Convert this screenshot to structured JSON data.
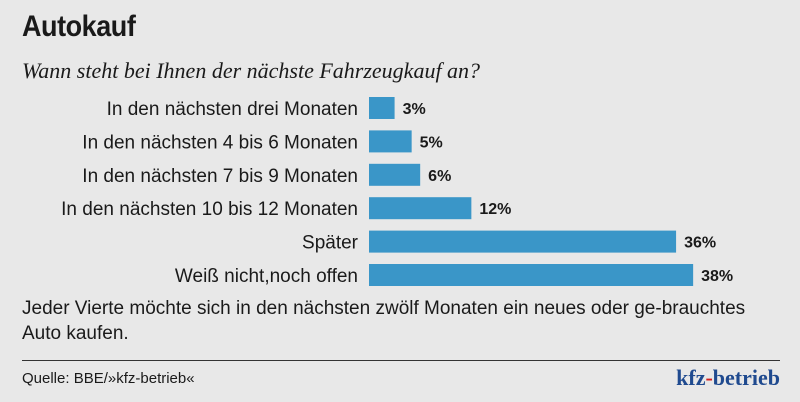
{
  "title": "Autokauf",
  "subtitle": "Wann steht bei Ihnen der nächste Fahrzeugkauf an?",
  "note": "Jeder Vierte möchte sich in den nächsten zwölf Monaten ein neues oder ge-brauchtes Auto kaufen.",
  "source": "Quelle: BBE/»kfz-betrieb«",
  "logo": {
    "part1": "kfz",
    "dash": "-",
    "part2": "betrieb"
  },
  "colors": {
    "bar": "#3a96c8",
    "background": "#e8e8e8"
  },
  "chart_data": {
    "type": "bar",
    "orientation": "horizontal",
    "categories": [
      "In den nächsten drei Monaten",
      "In den nächsten 4 bis 6 Monaten",
      "In den nächsten 7 bis 9 Monaten",
      "In den nächsten 10 bis 12 Monaten",
      "Später",
      "Weiß nicht,noch offen"
    ],
    "values": [
      3,
      5,
      6,
      12,
      36,
      38
    ],
    "value_labels": [
      "3%",
      "5%",
      "6%",
      "12%",
      "36%",
      "38%"
    ],
    "unit": "%",
    "grid": false
  }
}
